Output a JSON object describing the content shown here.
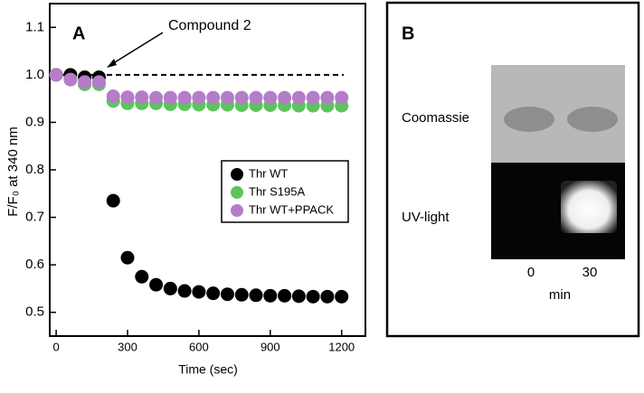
{
  "chart_data": {
    "type": "scatter",
    "panel_label": "A",
    "annotation": "Compound 2",
    "x_label": "Time (sec)",
    "y_label": "F/F₀ at 340 nm",
    "x": [
      0,
      60,
      120,
      180,
      240,
      300,
      360,
      420,
      480,
      540,
      600,
      660,
      720,
      780,
      840,
      900,
      960,
      1020,
      1080,
      1140,
      1200
    ],
    "series": [
      {
        "name": "Thr WT",
        "color": "#000000",
        "values": [
          1.0,
          1.0,
          0.995,
          0.995,
          0.735,
          0.615,
          0.575,
          0.558,
          0.55,
          0.545,
          0.543,
          0.54,
          0.538,
          0.537,
          0.536,
          0.535,
          0.535,
          0.534,
          0.533,
          0.533,
          0.533
        ]
      },
      {
        "name": "Thr S195A",
        "color": "#5cc45c",
        "values": [
          1.0,
          0.99,
          0.98,
          0.98,
          0.945,
          0.94,
          0.94,
          0.94,
          0.938,
          0.938,
          0.937,
          0.937,
          0.937,
          0.936,
          0.936,
          0.936,
          0.936,
          0.935,
          0.935,
          0.935,
          0.935
        ]
      },
      {
        "name": "Thr WT+PPACK",
        "color": "#b57cc8",
        "values": [
          1.0,
          0.99,
          0.985,
          0.985,
          0.955,
          0.953,
          0.953,
          0.952,
          0.952,
          0.952,
          0.952,
          0.952,
          0.952,
          0.952,
          0.952,
          0.952,
          0.952,
          0.952,
          0.952,
          0.952,
          0.952
        ]
      }
    ],
    "hline": 1,
    "xlim": [
      -27,
      1300
    ],
    "ylim": [
      0.45,
      1.15
    ],
    "xticks": [
      0,
      300,
      600,
      900,
      1200
    ],
    "yticks": [
      0.5,
      0.6,
      0.7,
      0.8,
      0.9,
      {
        "value": 1,
        "label": "1.0"
      },
      1.1
    ],
    "legend": "right"
  },
  "panel_b": {
    "label": "B",
    "rows": [
      "Coomassie",
      "UV-light"
    ],
    "lanes": [
      "0",
      "30"
    ],
    "x_label": "min"
  }
}
